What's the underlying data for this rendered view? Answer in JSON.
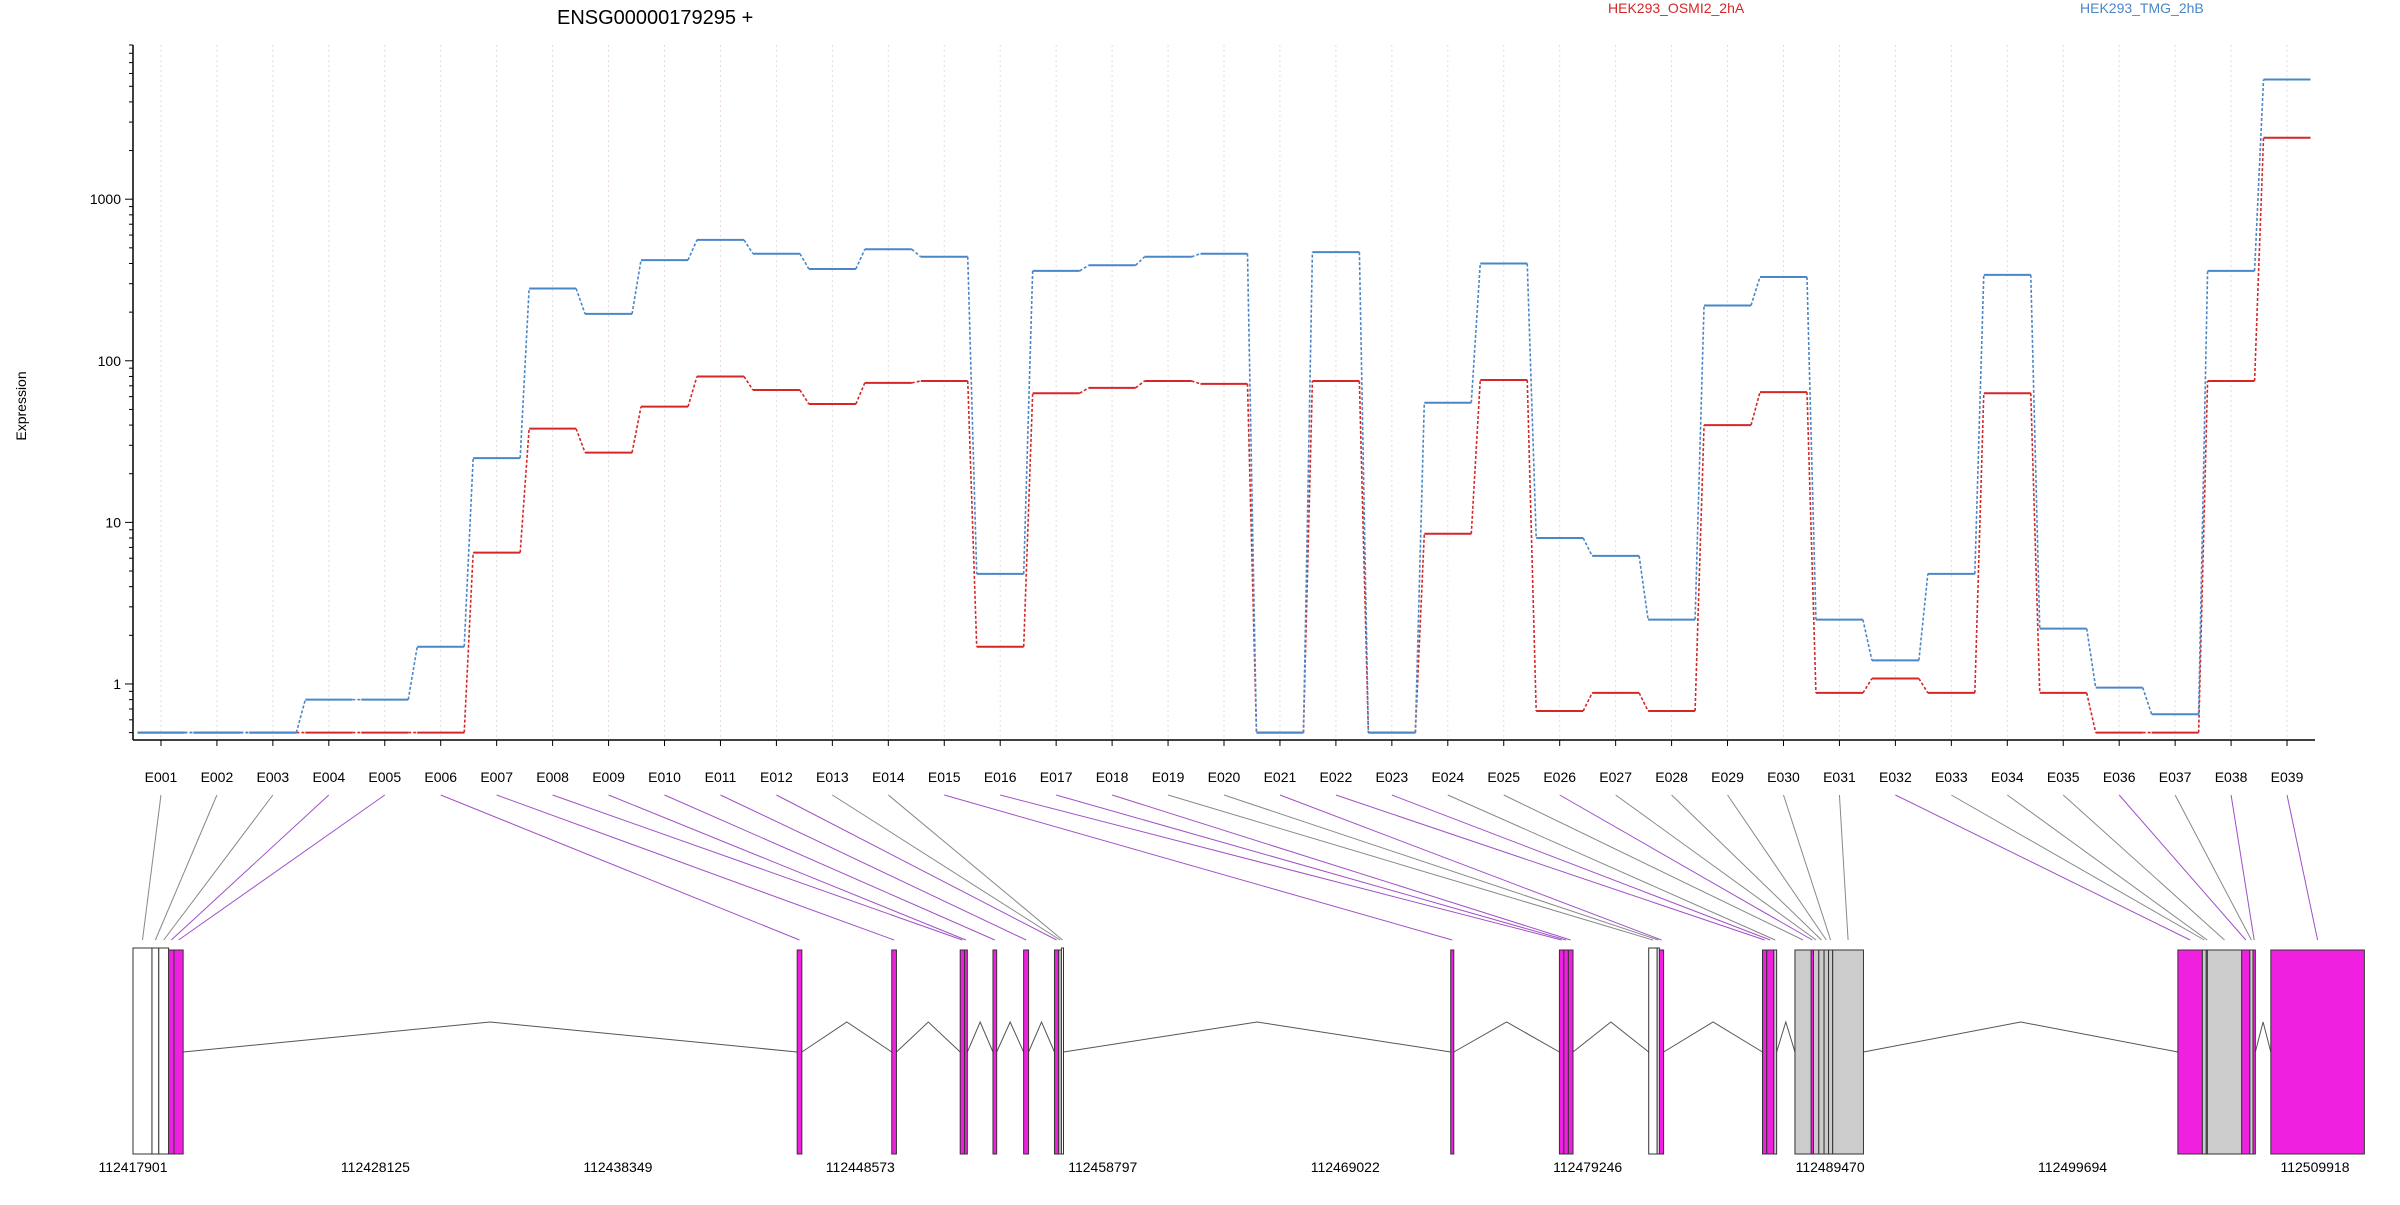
{
  "chart_data": {
    "type": "line",
    "title": "ENSG00000179295 +",
    "ylabel": "Expression",
    "yscale": "log",
    "ylim": [
      0.45,
      9000
    ],
    "yticks": [
      1,
      10,
      100,
      1000
    ],
    "ytick_labels": [
      "1",
      "10",
      "100",
      "1000"
    ],
    "categories": [
      "E001",
      "E002",
      "E003",
      "E004",
      "E005",
      "E006",
      "E007",
      "E008",
      "E009",
      "E010",
      "E011",
      "E012",
      "E013",
      "E014",
      "E015",
      "E016",
      "E017",
      "E018",
      "E019",
      "E020",
      "E021",
      "E022",
      "E023",
      "E024",
      "E025",
      "E026",
      "E027",
      "E028",
      "E029",
      "E030",
      "E031",
      "E032",
      "E033",
      "E034",
      "E035",
      "E036",
      "E037",
      "E038",
      "E039"
    ],
    "legend": "top",
    "series": [
      {
        "name": "HEK293_OSMI2_2hA",
        "color": "#d62728",
        "values": [
          0.5,
          0.5,
          0.5,
          0.5,
          0.5,
          0.5,
          6.5,
          38,
          27,
          52,
          80,
          66,
          54,
          73,
          75,
          1.7,
          63,
          68,
          75,
          72,
          0.5,
          75,
          0.5,
          8.5,
          76,
          0.68,
          0.88,
          0.68,
          40,
          64,
          0.88,
          1.08,
          0.88,
          63,
          0.88,
          0.5,
          0.5,
          75,
          2400
        ]
      },
      {
        "name": "HEK293_TMG_2hB",
        "color": "#4a86c8",
        "values": [
          0.5,
          0.5,
          0.5,
          0.8,
          0.8,
          1.7,
          25,
          280,
          195,
          420,
          560,
          460,
          370,
          490,
          440,
          4.8,
          360,
          390,
          440,
          460,
          0.5,
          470,
          0.5,
          55,
          400,
          8,
          6.2,
          2.5,
          220,
          330,
          2.5,
          1.4,
          4.8,
          340,
          2.2,
          0.95,
          0.65,
          360,
          5500
        ]
      }
    ],
    "gene_model": {
      "coordinate_labels": [
        "112417901",
        "112428125",
        "112438349",
        "112448573",
        "112458797",
        "112469022",
        "112479246",
        "112489470",
        "112499694",
        "112509918"
      ],
      "exon_colors": [
        "#ffffff",
        "#ffffff",
        "#ffffff",
        "#f020e0",
        "#f020e0",
        "#f020e0",
        "#f020e0",
        "#f020e0",
        "#f020e0",
        "#f020e0",
        "#f020e0",
        "#f020e0",
        "#cccccc",
        "#ffffff",
        "#f020e0",
        "#f020e0",
        "#f020e0",
        "#f020e0",
        "#ffffff",
        "#ffffff",
        "#f020e0",
        "#f020e0",
        "#f020e0",
        "#cccccc",
        "#cccccc",
        "#f020e0",
        "#cccccc",
        "#cccccc",
        "#cccccc",
        "#cccccc",
        "#cccccc",
        "#f020e0",
        "#cccccc",
        "#cccccc",
        "#cccccc",
        "#f020e0",
        "#cccccc",
        "#f020e0",
        "#f020e0"
      ]
    }
  }
}
